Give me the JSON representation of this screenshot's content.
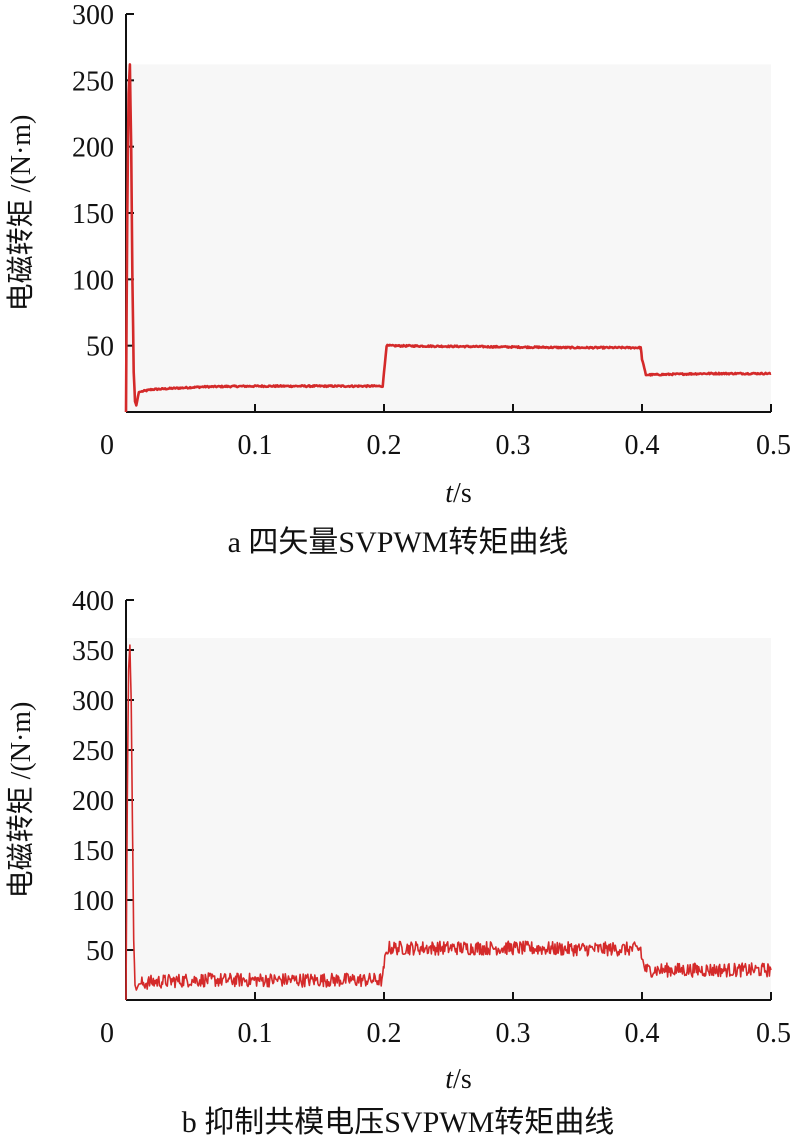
{
  "chart_data": [
    {
      "type": "line",
      "caption": "a  四矢量SVPWM转矩曲线",
      "xlabel_italic": "t",
      "xlabel_unit": "/s",
      "ylabel": "电磁转矩 /(N·m)",
      "xlim": [
        0,
        0.5
      ],
      "ylim": [
        0,
        300
      ],
      "xticks": [
        "0",
        "0.1",
        "0.2",
        "0.3",
        "0.4",
        "0.5"
      ],
      "yticks": [
        "50",
        "100",
        "150",
        "200",
        "250",
        "300"
      ],
      "ytick_values": [
        50,
        100,
        150,
        200,
        250,
        300
      ],
      "xtick_values": [
        0,
        0.1,
        0.2,
        0.3,
        0.4,
        0.5
      ],
      "plot_background_max": 262,
      "line_color": "#d42a2a",
      "series": [
        {
          "x": [
            0,
            0.001,
            0.002,
            0.003,
            0.004,
            0.005,
            0.006,
            0.007,
            0.008,
            0.01,
            0.02,
            0.04,
            0.06,
            0.1,
            0.15,
            0.199,
            0.2,
            0.202,
            0.25,
            0.3,
            0.35,
            0.399,
            0.4,
            0.403,
            0.45,
            0.5
          ],
          "y": [
            0,
            150,
            240,
            262,
            200,
            100,
            30,
            8,
            5,
            15,
            17,
            18,
            19,
            19.5,
            19.5,
            19.5,
            30,
            50,
            49.5,
            49,
            48.5,
            48.5,
            40,
            28,
            29,
            29
          ],
          "noise": 0.6
        }
      ]
    },
    {
      "type": "line",
      "caption": "b  抑制共模电压SVPWM转矩曲线",
      "xlabel_italic": "t",
      "xlabel_unit": "/s",
      "ylabel": "电磁转矩 /(N·m)",
      "xlim": [
        0,
        0.5
      ],
      "ylim": [
        0,
        400
      ],
      "xticks": [
        "0",
        "0.1",
        "0.2",
        "0.3",
        "0.4",
        "0.5"
      ],
      "yticks": [
        "50",
        "100",
        "150",
        "200",
        "250",
        "300",
        "350",
        "400"
      ],
      "ytick_values": [
        50,
        100,
        150,
        200,
        250,
        300,
        350,
        400
      ],
      "xtick_values": [
        0,
        0.1,
        0.2,
        0.3,
        0.4,
        0.5
      ],
      "plot_background_max": 362,
      "line_color": "#d42a2a",
      "series": [
        {
          "x": [
            0,
            0.001,
            0.002,
            0.003,
            0.004,
            0.005,
            0.006,
            0.007,
            0.008,
            0.01,
            0.02,
            0.05,
            0.1,
            0.15,
            0.199,
            0.2,
            0.203,
            0.25,
            0.3,
            0.35,
            0.399,
            0.4,
            0.403,
            0.45,
            0.5
          ],
          "y": [
            0,
            200,
            330,
            355,
            300,
            180,
            60,
            15,
            10,
            16,
            18,
            20,
            20,
            20,
            20,
            35,
            52,
            52,
            52,
            51,
            51,
            40,
            30,
            30,
            30
          ],
          "noise": 7
        }
      ]
    }
  ]
}
